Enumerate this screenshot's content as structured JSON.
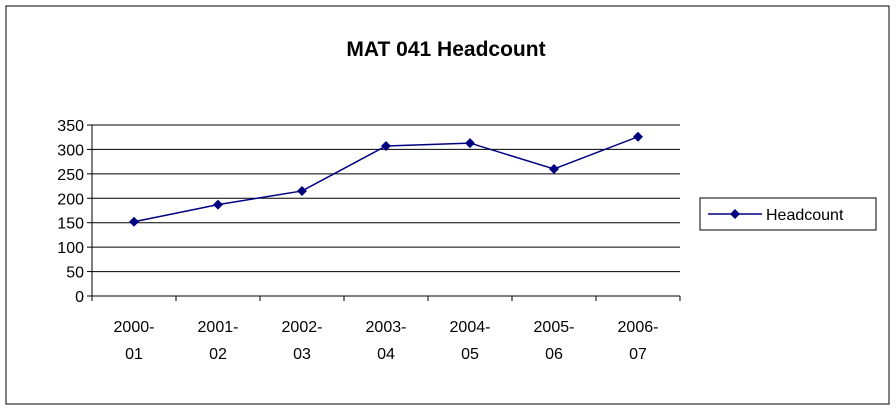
{
  "chart_data": {
    "type": "line",
    "title": "MAT 041 Headcount",
    "categories": [
      "2000-01",
      "2001-02",
      "2002-03",
      "2003-04",
      "2004-05",
      "2005-06",
      "2006-07"
    ],
    "series": [
      {
        "name": "Headcount",
        "color": "#000080",
        "values": [
          152,
          187,
          215,
          307,
          313,
          260,
          326
        ]
      }
    ],
    "ylim": [
      0,
      350
    ],
    "yticks": [
      0,
      50,
      100,
      150,
      200,
      250,
      300,
      350
    ],
    "grid": true,
    "legend": "right"
  }
}
